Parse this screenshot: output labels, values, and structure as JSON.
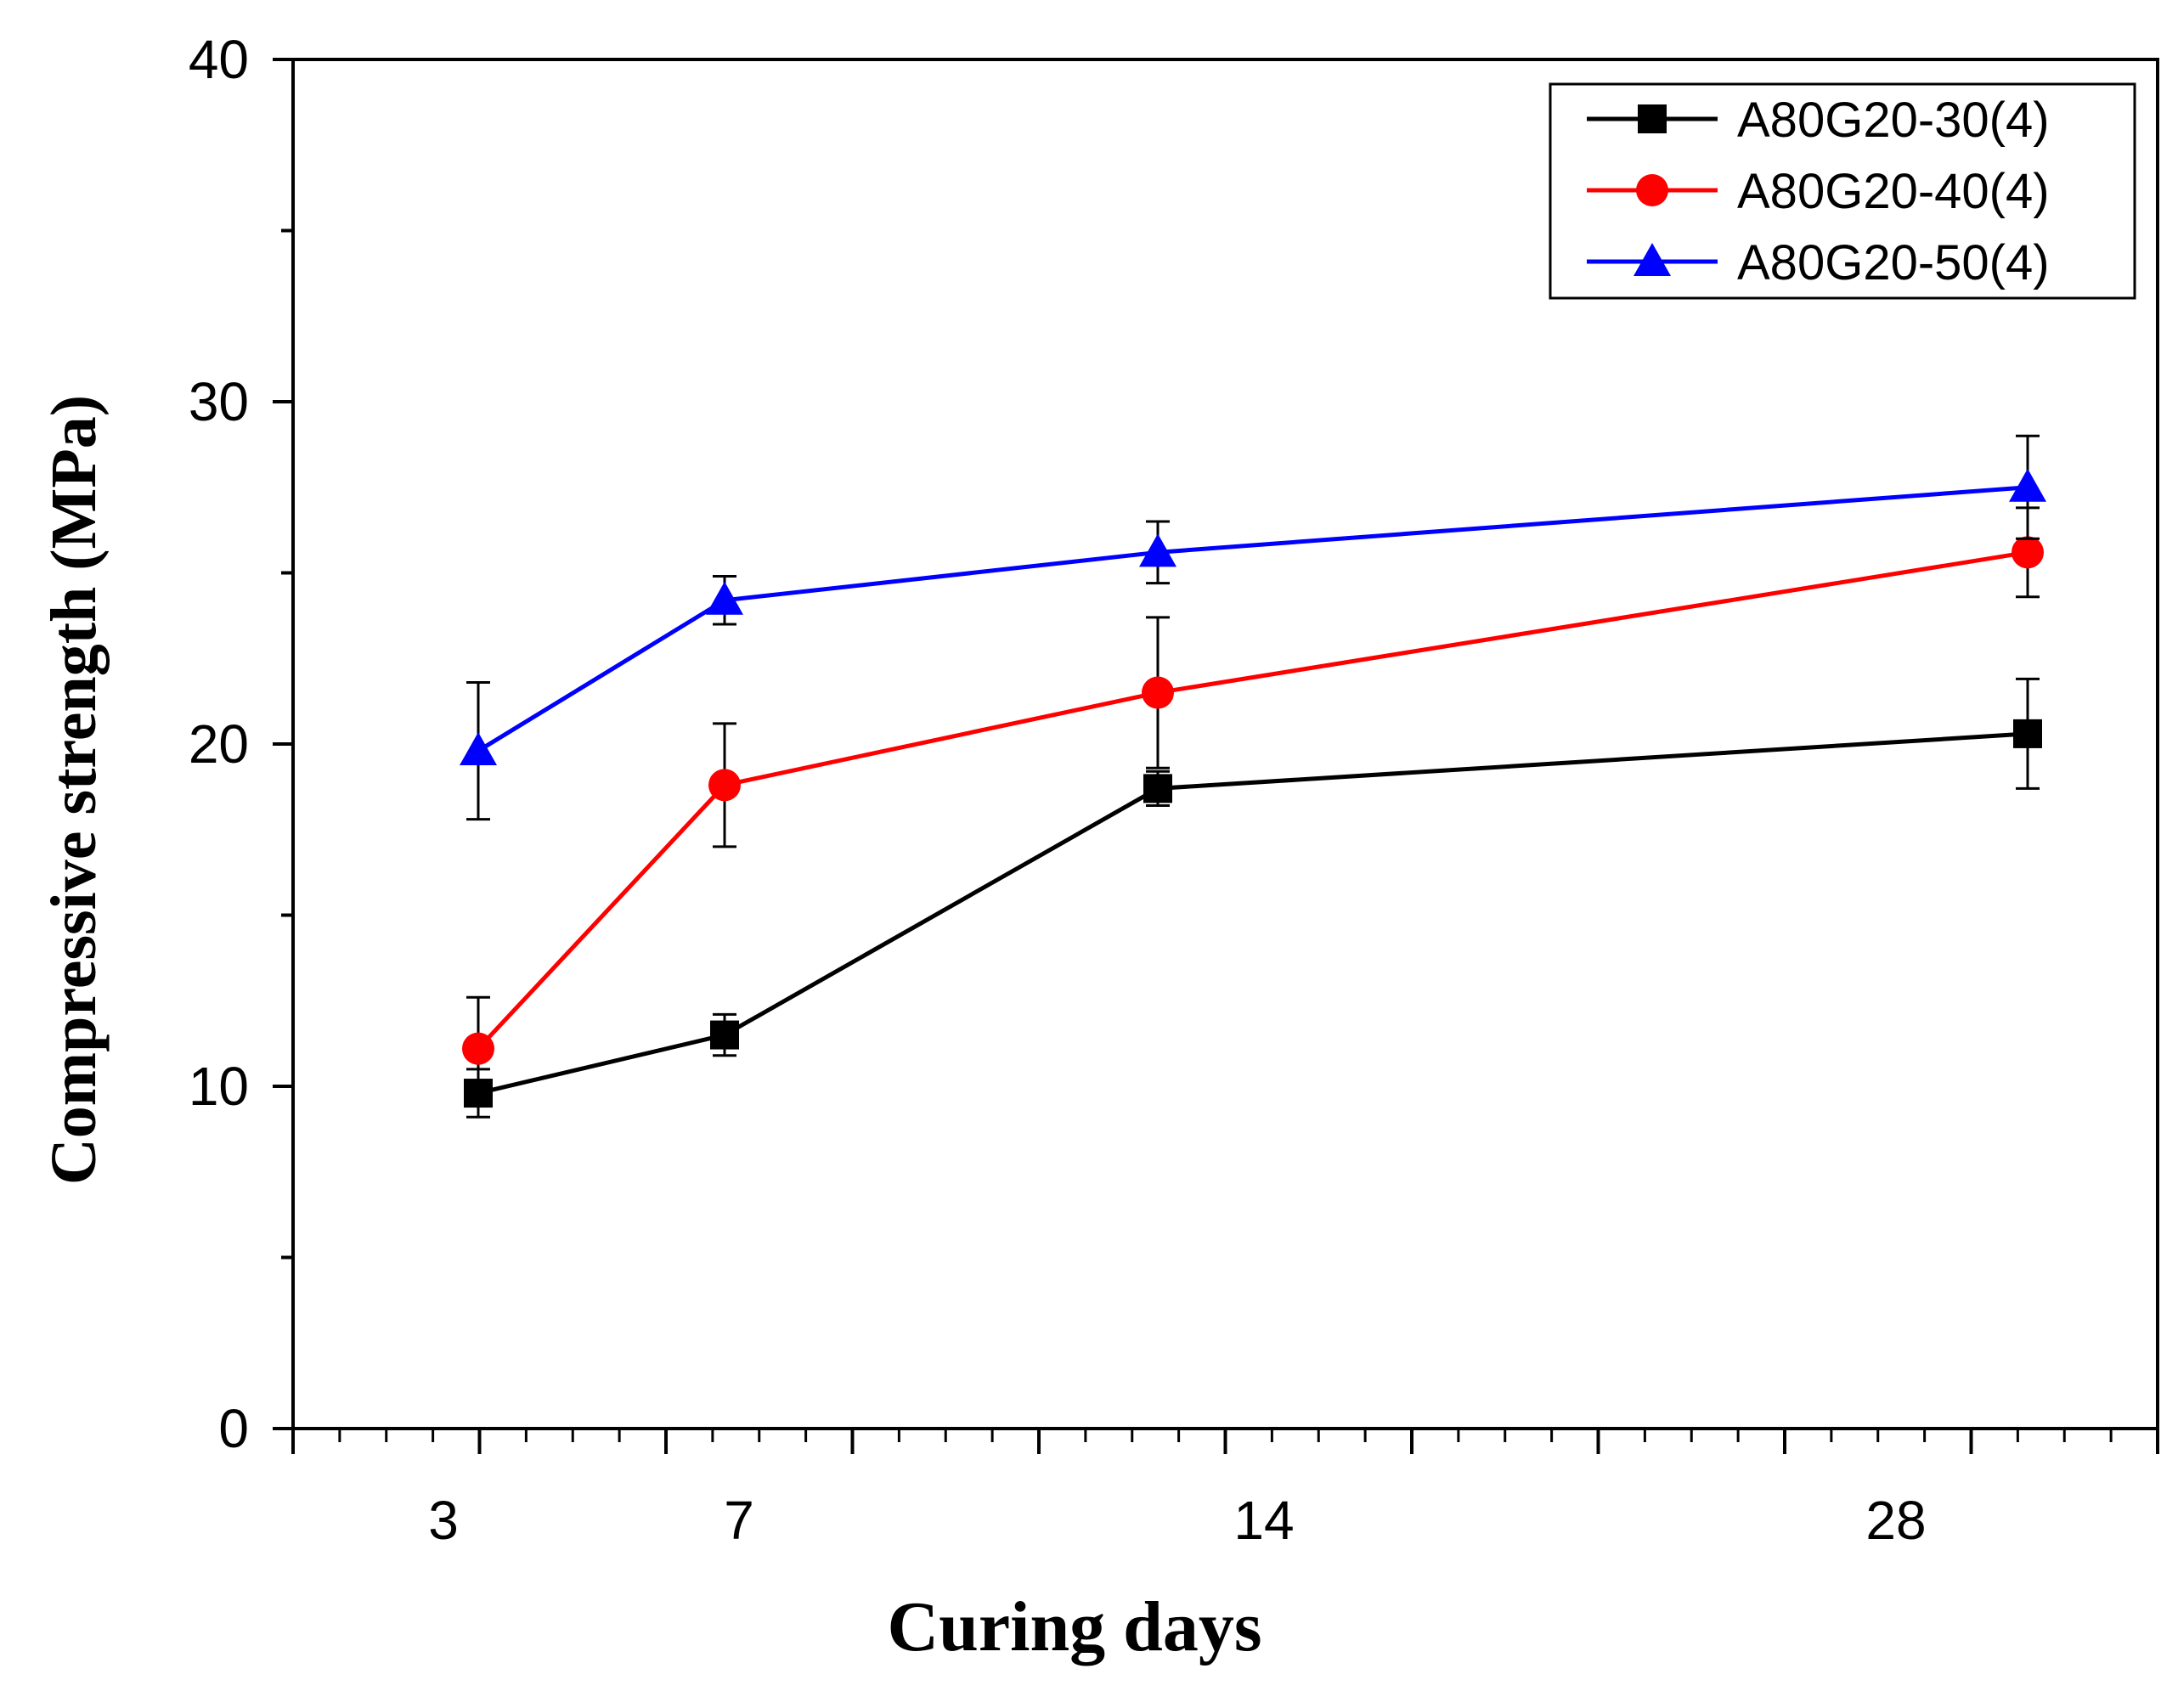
{
  "chart_data": {
    "type": "line",
    "xlabel": "Curing days",
    "ylabel": "Compressive strength (MPa)",
    "ylim": [
      0,
      40
    ],
    "yticks": [
      0,
      10,
      20,
      30,
      40
    ],
    "x_categories": [
      "3",
      "7",
      "14",
      "28"
    ],
    "grid": false,
    "legend_position": "top-right",
    "series": [
      {
        "name": "A80G20-30(4)",
        "color": "#000000",
        "marker": "square",
        "x": [
          "3",
          "7",
          "14",
          "28"
        ],
        "values": [
          9.8,
          11.5,
          18.7,
          20.3
        ],
        "error": [
          0.7,
          0.6,
          0.5,
          1.6
        ]
      },
      {
        "name": "A80G20-40(4)",
        "color": "#ff0000",
        "marker": "circle",
        "x": [
          "3",
          "7",
          "14",
          "28"
        ],
        "values": [
          11.1,
          18.8,
          21.5,
          25.6
        ],
        "error": [
          1.5,
          1.8,
          2.2,
          1.3
        ]
      },
      {
        "name": "A80G20-50(4)",
        "color": "#0000ff",
        "marker": "triangle",
        "x": [
          "3",
          "7",
          "14",
          "28"
        ],
        "values": [
          19.8,
          24.2,
          25.6,
          27.5
        ],
        "error": [
          2.0,
          0.7,
          0.9,
          1.5
        ]
      }
    ]
  }
}
